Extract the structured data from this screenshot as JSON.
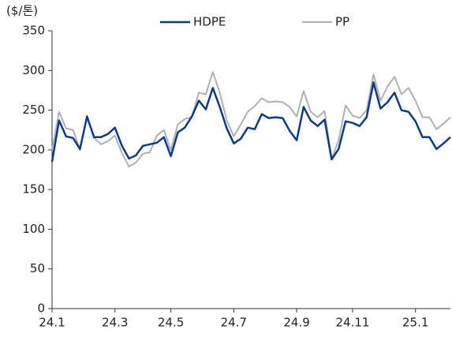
{
  "chart_data": {
    "type": "line",
    "y_label": "($/톤)",
    "categories": [
      "24.1",
      null,
      null,
      null,
      null,
      null,
      null,
      null,
      null,
      "24.3",
      null,
      null,
      null,
      null,
      null,
      null,
      null,
      "24.5",
      null,
      null,
      null,
      null,
      null,
      null,
      null,
      null,
      "24.7",
      null,
      null,
      null,
      null,
      null,
      null,
      null,
      null,
      "24.9",
      null,
      null,
      null,
      null,
      null,
      null,
      null,
      "24.11",
      null,
      null,
      null,
      null,
      null,
      null,
      null,
      null,
      "25.1",
      null,
      null,
      null,
      null,
      null
    ],
    "series": [
      {
        "name": "HDPE",
        "color": "#0a3a8a",
        "values": [
          185,
          237,
          217,
          215,
          201,
          242,
          216,
          216,
          220,
          228,
          205,
          189,
          193,
          205,
          207,
          209,
          216,
          192,
          222,
          228,
          242,
          262,
          251,
          278,
          254,
          227,
          208,
          214,
          228,
          226,
          245,
          240,
          241,
          240,
          224,
          212,
          254,
          237,
          230,
          238,
          188,
          201,
          236,
          234,
          230,
          241,
          285,
          252,
          260,
          272,
          250,
          248,
          236,
          216,
          216,
          201,
          208,
          216
        ]
      },
      {
        "name": "PP",
        "color": "#b0b0b0",
        "values": [
          200,
          248,
          227,
          225,
          200,
          243,
          215,
          207,
          211,
          218,
          196,
          179,
          184,
          195,
          197,
          218,
          225,
          200,
          232,
          239,
          241,
          272,
          270,
          298,
          272,
          237,
          217,
          232,
          248,
          255,
          265,
          260,
          261,
          260,
          254,
          242,
          274,
          248,
          241,
          249,
          188,
          212,
          256,
          243,
          240,
          250,
          295,
          262,
          280,
          292,
          270,
          278,
          262,
          241,
          241,
          226,
          233,
          241
        ]
      }
    ],
    "ylim": [
      0,
      350
    ],
    "yticks": [
      0,
      50,
      100,
      150,
      200,
      250,
      300,
      350
    ],
    "grid": false,
    "legend": "top"
  }
}
